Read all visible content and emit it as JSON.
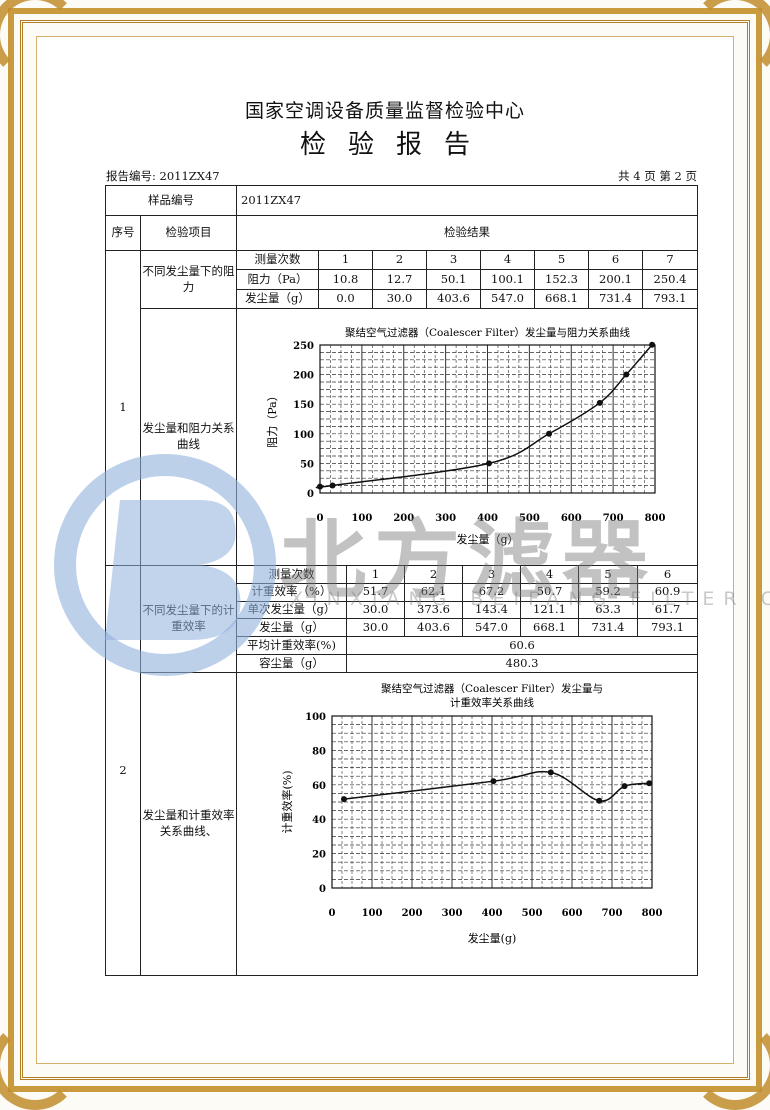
{
  "header": {
    "organization": "国家空调设备质量监督检验中心",
    "document_title": "检验报告",
    "report_no": "报告编号: 2011ZX47",
    "page_info": "共 4 页 第 2 页"
  },
  "table": {
    "sample_no_label": "样品编号",
    "sample_no_value": "2011ZX47",
    "col_seq": "序号",
    "col_item": "检验项目",
    "col_result": "检验结果",
    "section1": {
      "seq": "1",
      "item_a": "不同发尘量下的阻力",
      "item_b": "发尘量和阻力关系曲线",
      "rows": [
        {
          "label": "测量次数",
          "values": [
            "1",
            "2",
            "3",
            "4",
            "5",
            "6",
            "7"
          ]
        },
        {
          "label": "阻力（Pa）",
          "values": [
            "10.8",
            "12.7",
            "50.1",
            "100.1",
            "152.3",
            "200.1",
            "250.4"
          ]
        },
        {
          "label": "发尘量（g）",
          "values": [
            "0.0",
            "30.0",
            "403.6",
            "547.0",
            "668.1",
            "731.4",
            "793.1"
          ]
        }
      ]
    },
    "section2": {
      "seq": "2",
      "item_a": "不同发尘量下的计重效率",
      "item_b": "发尘量和计重效率关系曲线、",
      "rows": [
        {
          "label": "测量次数",
          "values": [
            "1",
            "2",
            "3",
            "4",
            "5",
            "6"
          ]
        },
        {
          "label": "计重效率（%）",
          "values": [
            "51.7",
            "62.1",
            "67.2",
            "50.7",
            "59.2",
            "60.9"
          ]
        },
        {
          "label": "单次发尘量（g）",
          "values": [
            "30.0",
            "373.6",
            "143.4",
            "121.1",
            "63.3",
            "61.7"
          ]
        },
        {
          "label": "发尘量（g）",
          "values": [
            "30.0",
            "403.6",
            "547.0",
            "668.1",
            "731.4",
            "793.1"
          ]
        }
      ],
      "avg_label": "平均计重效率(%)",
      "avg_value": "60.6",
      "capacity_label": "容尘量（g）",
      "capacity_value": "480.3"
    }
  },
  "chart_data": [
    {
      "type": "line",
      "title": "聚结空气过滤器（Coalescer Filter）发尘量与阻力关系曲线",
      "xlabel": "发尘量（g）",
      "ylabel": "阻力（Pa）",
      "xlim": [
        0,
        800
      ],
      "ylim": [
        0,
        250
      ],
      "xticks": [
        "0",
        "100",
        "200",
        "300",
        "400",
        "500",
        "600",
        "700",
        "800"
      ],
      "yticks": [
        "0",
        "50",
        "100",
        "150",
        "200",
        "250"
      ],
      "grid": true,
      "color": "#111111",
      "x": [
        0.0,
        30.0,
        403.6,
        547.0,
        668.1,
        731.4,
        793.1
      ],
      "y": [
        10.8,
        12.7,
        50.1,
        100.1,
        152.3,
        200.1,
        250.4
      ]
    },
    {
      "type": "line",
      "title": "聚结空气过滤器（Coalescer Filter）发尘量与",
      "title_line2": "计重效率关系曲线",
      "xlabel": "发尘量(g)",
      "ylabel": "计重效率(%)",
      "xlim": [
        0,
        800
      ],
      "ylim": [
        0,
        100
      ],
      "xticks": [
        "0",
        "100",
        "200",
        "300",
        "400",
        "500",
        "600",
        "700",
        "800"
      ],
      "yticks": [
        "0",
        "20",
        "40",
        "60",
        "80",
        "100"
      ],
      "grid": true,
      "color": "#111111",
      "x": [
        30.0,
        403.6,
        547.0,
        668.1,
        731.4,
        793.1
      ],
      "y": [
        51.7,
        62.1,
        67.2,
        50.7,
        59.2,
        60.9
      ]
    }
  ],
  "watermark": {
    "brand": "北方滤器",
    "company_en": "XINXIANG BEIFANG FILTER CO.,LTD.",
    "logo_color": "#8fb0dc",
    "text_color": "#888888"
  },
  "colors": {
    "border_gold": "#c99a3e"
  }
}
